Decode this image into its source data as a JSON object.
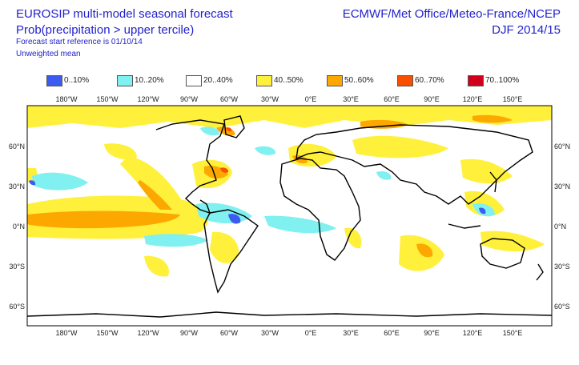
{
  "header": {
    "title_line1": "EUROSIP multi-model seasonal forecast",
    "title_line2": "Prob(precipitation > upper tercile)",
    "subtitle_line1": "Forecast start reference is 01/10/14",
    "subtitle_line2": "Unweighted mean",
    "organisations": "ECMWF/Met Office/Meteo-France/NCEP",
    "season": "DJF 2014/15"
  },
  "legend": [
    {
      "label": "0..10%",
      "color": "#3c5cf0"
    },
    {
      "label": "10..20%",
      "color": "#80f0f0"
    },
    {
      "label": "20..40%",
      "color": "#ffffff"
    },
    {
      "label": "40..50%",
      "color": "#fff03c"
    },
    {
      "label": "50..60%",
      "color": "#fca800"
    },
    {
      "label": "60..70%",
      "color": "#f85000"
    },
    {
      "label": "70..100%",
      "color": "#d0001c"
    }
  ],
  "axes": {
    "longitude_labels": [
      "180°W",
      "150°W",
      "120°W",
      "90°W",
      "60°W",
      "30°W",
      "0°E",
      "30°E",
      "60°E",
      "90°E",
      "120°E",
      "150°E"
    ],
    "latitude_labels": [
      "60°N",
      "30°N",
      "0°N",
      "30°S",
      "60°S"
    ]
  }
}
